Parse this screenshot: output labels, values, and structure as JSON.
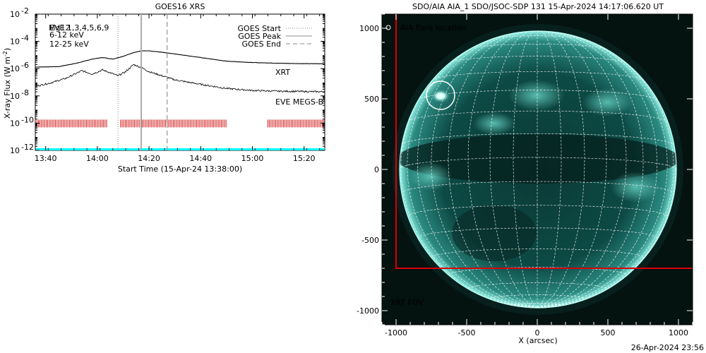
{
  "xrs_panel": {
    "title": "GOES16 XRS",
    "xlabel": "Start Time (15-Apr-24 13:38:00)",
    "ylabel": "X-ray Flux (W m",
    "ylabel_sup": "-2",
    "ylabel_end": ")",
    "legend_left": [
      {
        "text": "EVE 1,3,4,5,6,9",
        "color": "#000000"
      },
      {
        "text": "Mg12",
        "color": "#000000"
      },
      {
        "text": "6-12 keV",
        "color": "#cc00cc"
      },
      {
        "text": "12-25 keV",
        "color": "#00cc00"
      }
    ],
    "legend_right": [
      {
        "text": "GOES Start",
        "style": "dotted"
      },
      {
        "text": "GOES Peak",
        "style": "solid"
      },
      {
        "text": "GOES End",
        "style": "dashed"
      }
    ],
    "xrt_label": "XRT",
    "xrt_color": "#cc0000",
    "eve_label": "EVE MEGS-B",
    "eve_color": "#00ffff"
  },
  "aia_panel": {
    "title": "SDO/AIA AIA_1 SDO/JSOC-SDP 131 15-Apr-2024 14:17:06.620 UT",
    "flare_label": "AIA flare location",
    "fov_label": "XRT FOV",
    "fov_color": "#dd0000",
    "xlabel": "X (arcsec)",
    "x_ticks": [
      "-1000",
      "-500",
      "0",
      "500",
      "1000"
    ],
    "y_ticks": [
      "1000",
      "500",
      "0",
      "-500",
      "-1000"
    ]
  },
  "footer": {
    "timestamp": "26-Apr-2024 23:56"
  },
  "chart_data": [
    {
      "type": "line",
      "title": "GOES16 XRS",
      "xlabel": "Start Time (15-Apr-24 13:38:00)",
      "ylabel": "X-ray Flux (W m-2)",
      "yscale": "log",
      "ylim": [
        1e-12,
        0.01
      ],
      "xlim": [
        "13:36",
        "15:28"
      ],
      "x_ticks": [
        "13:40",
        "14:00",
        "14:20",
        "14:40",
        "15:00",
        "15:20"
      ],
      "y_ticks": [
        "10^-12",
        "10^-10",
        "10^-8",
        "10^-6",
        "10^-4",
        "10^-2"
      ],
      "series": [
        {
          "name": "GOES long channel (upper)",
          "x": [
            "13:36",
            "13:45",
            "13:52",
            "13:58",
            "14:02",
            "14:06",
            "14:10",
            "14:14",
            "14:17",
            "14:20",
            "14:25",
            "14:30",
            "14:40",
            "14:50",
            "15:00",
            "15:10",
            "15:20",
            "15:28"
          ],
          "y": [
            1.3e-06,
            1.4e-06,
            2.5e-06,
            5e-06,
            6.5e-06,
            5e-06,
            8e-06,
            1.5e-05,
            2e-05,
            2e-05,
            1.6e-05,
            1.2e-05,
            6.5e-06,
            3.5e-06,
            2.8e-06,
            2.5e-06,
            2.3e-06,
            2.3e-06
          ]
        },
        {
          "name": "GOES short channel (lower)",
          "x": [
            "13:36",
            "13:42",
            "13:48",
            "13:54",
            "13:58",
            "14:02",
            "14:05",
            "14:08",
            "14:11",
            "14:14",
            "14:17",
            "14:20",
            "14:25",
            "14:30",
            "14:40",
            "14:50",
            "15:00",
            "15:10",
            "15:20",
            "15:28"
          ],
          "y": [
            5e-08,
            9e-08,
            2e-07,
            7e-07,
            4e-07,
            8e-07,
            5e-07,
            3e-07,
            6e-07,
            2e-06,
            1.2e-06,
            6e-07,
            3e-07,
            1.5e-07,
            7e-08,
            3.5e-08,
            2.5e-08,
            2.2e-08,
            2.1e-08,
            2e-08
          ]
        }
      ],
      "goes_start": "14:08",
      "goes_peak": "14:17",
      "goes_end": "14:27",
      "xrt_coverage": [
        [
          "13:36",
          "14:04"
        ],
        [
          "14:09",
          "14:50"
        ],
        [
          "15:06",
          "15:28"
        ]
      ]
    },
    {
      "type": "image",
      "title": "SDO/AIA AIA_1 SDO/JSOC-SDP 131 15-Apr-2024 14:17:06.620 UT",
      "xlabel": "X (arcsec)",
      "xlim": [
        -1100,
        1100
      ],
      "ylim": [
        -1100,
        1100
      ],
      "solar_radius_arcsec": 980,
      "flare_location": [
        -680,
        520
      ],
      "xrt_fov": {
        "x": [
          -1000,
          1100
        ],
        "y": [
          -700,
          1100
        ]
      }
    }
  ]
}
